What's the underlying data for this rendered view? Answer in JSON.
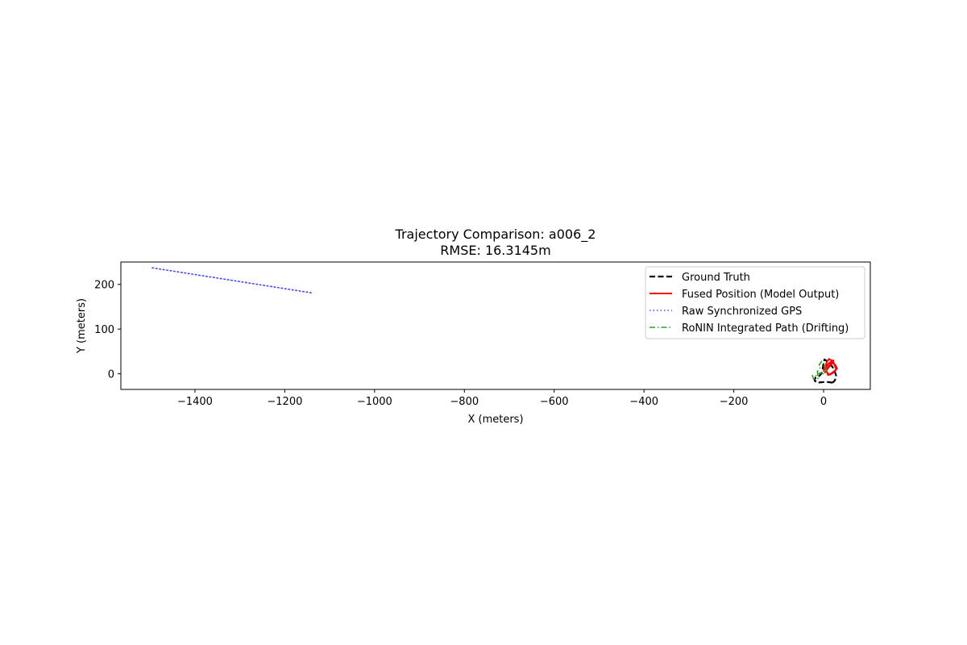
{
  "chart_data": {
    "type": "line",
    "title": "Trajectory Comparison: a006_2",
    "subtitle": "RMSE: 16.3145m",
    "xlabel": "X (meters)",
    "ylabel": "Y (meters)",
    "xlim": [
      -1565,
      104
    ],
    "ylim": [
      -35,
      250
    ],
    "x_ticks": [
      -1400,
      -1200,
      -1000,
      -800,
      -600,
      -400,
      -200,
      0
    ],
    "x_tick_labels": [
      "−1400",
      "−1200",
      "−1000",
      "−800",
      "−600",
      "−400",
      "−200",
      "0"
    ],
    "y_ticks": [
      0,
      100,
      200
    ],
    "y_tick_labels": [
      "0",
      "100",
      "200"
    ],
    "grid": false,
    "legend_position": "upper right",
    "series": [
      {
        "name": "Ground Truth",
        "color": "#000000",
        "style": "dashed",
        "x": [
          20,
          14,
          5,
          -5,
          -15,
          -20,
          -18,
          -10,
          -5,
          -2,
          0,
          2,
          5,
          12,
          20,
          25,
          28,
          25,
          20
        ],
        "y": [
          -20,
          -19,
          -18,
          -19,
          -20,
          -15,
          -8,
          -5,
          0,
          10,
          25,
          32,
          30,
          25,
          15,
          5,
          -5,
          -15,
          -20
        ]
      },
      {
        "name": "Fused Position (Model Output)",
        "color": "#ff0000",
        "style": "solid",
        "x": [
          0,
          3,
          8,
          12,
          18,
          22,
          28,
          24,
          16,
          10,
          6,
          12,
          20,
          26,
          30,
          24,
          14,
          8,
          4,
          10,
          18,
          22,
          16,
          8,
          2
        ],
        "y": [
          5,
          15,
          28,
          33,
          30,
          26,
          10,
          6,
          0,
          -3,
          8,
          18,
          24,
          20,
          12,
          4,
          -2,
          2,
          12,
          22,
          28,
          30,
          20,
          10,
          2
        ]
      },
      {
        "name": "Raw Synchronized GPS",
        "color": "#4444ff",
        "style": "dotted",
        "x": [
          -1495,
          -1140
        ],
        "y": [
          237,
          181
        ]
      },
      {
        "name": "RoNIN Integrated Path (Drifting)",
        "color": "#2ca02c",
        "style": "dashdot",
        "x": [
          0,
          -5,
          -10,
          -15,
          -25,
          -22,
          -12,
          -14,
          -10,
          -6,
          -10,
          -4,
          0,
          4,
          6,
          2
        ],
        "y": [
          0,
          2,
          1,
          -4,
          -4,
          -12,
          -10,
          5,
          10,
          15,
          20,
          28,
          25,
          15,
          5,
          0
        ]
      }
    ]
  }
}
